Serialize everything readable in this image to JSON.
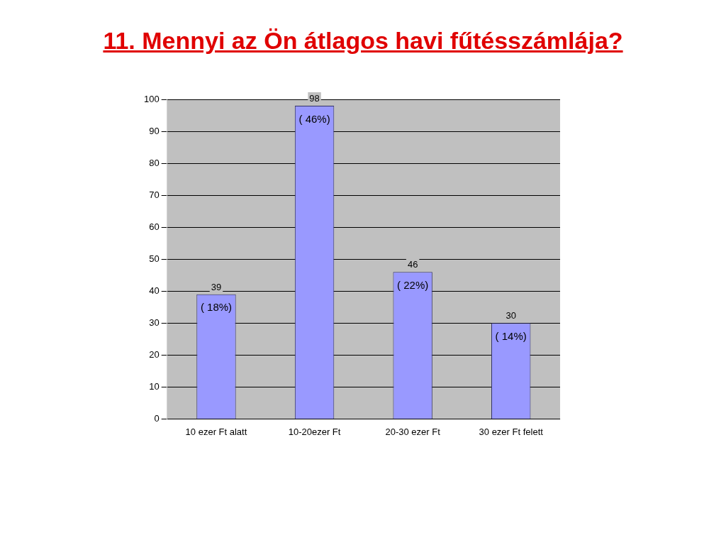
{
  "chart_data": {
    "type": "bar",
    "title": "11. Mennyi az Ön átlagos havi fűtésszámlája?",
    "categories": [
      "10 ezer Ft alatt",
      "10-20ezer Ft",
      "20-30 ezer Ft",
      "30 ezer Ft felett"
    ],
    "values": [
      39,
      98,
      46,
      30
    ],
    "color": "#9999ff",
    "ylim": [
      0,
      100
    ],
    "yticks": [
      0,
      10,
      20,
      30,
      40,
      50,
      60,
      70,
      80,
      90,
      100
    ],
    "grid": "y",
    "data_labels": true,
    "annotations": [
      {
        "text": "( 18%)",
        "x": "10 ezer Ft alatt",
        "y": 39
      },
      {
        "text": "( 46%)",
        "x": "10-20ezer Ft",
        "y": 98
      },
      {
        "text": "( 22%)",
        "x": "20-30 ezer Ft",
        "y": 46
      },
      {
        "text": "( 14%)",
        "x": "30 ezer Ft felett",
        "y": 30
      }
    ]
  }
}
